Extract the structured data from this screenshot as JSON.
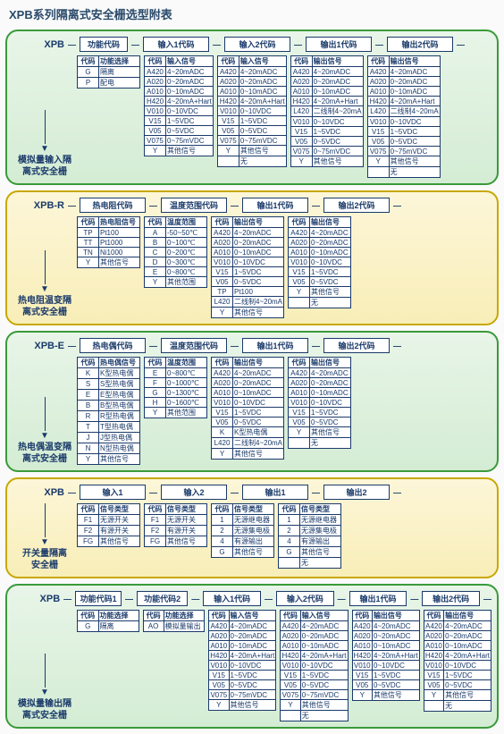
{
  "page_title": "XPB系列隔离式安全栅选型附表",
  "sections": [
    {
      "id": "s1",
      "theme": "green",
      "prefix": "XPB",
      "side_label": [
        "模拟量输入隔",
        "离式安全栅"
      ],
      "headers": [
        "功能代码",
        "输入1代码",
        "输入2代码",
        "输出1代码",
        "输出2代码"
      ],
      "header_widths": [
        54,
        74,
        74,
        74,
        74
      ],
      "tables": [
        {
          "cols": [
            "代码",
            "功能选择"
          ],
          "rows": [
            [
              "G",
              "隔离"
            ],
            [
              "P",
              "配电"
            ]
          ]
        },
        {
          "cols": [
            "代码",
            "输入信号"
          ],
          "rows": [
            [
              "A420",
              "4~20mADC"
            ],
            [
              "A020",
              "0~20mADC"
            ],
            [
              "A010",
              "0~10mADC"
            ],
            [
              "H420",
              "4~20mA+Hart"
            ],
            [
              "V010",
              "0~10VDC"
            ],
            [
              "V15",
              "1~5VDC"
            ],
            [
              "V05",
              "0~5VDC"
            ],
            [
              "V075",
              "0~75mVDC"
            ],
            [
              "Y",
              "其他信号"
            ]
          ]
        },
        {
          "cols": [
            "代码",
            "输入信号"
          ],
          "rows": [
            [
              "A420",
              "4~20mADC"
            ],
            [
              "A020",
              "0~20mADC"
            ],
            [
              "A010",
              "0~10mADC"
            ],
            [
              "H420",
              "4~20mA+Hart"
            ],
            [
              "V010",
              "0~10VDC"
            ],
            [
              "V15",
              "1~5VDC"
            ],
            [
              "V05",
              "0~5VDC"
            ],
            [
              "V075",
              "0~75mVDC"
            ],
            [
              "Y",
              "其他信号"
            ],
            [
              "",
              "无"
            ]
          ]
        },
        {
          "cols": [
            "代码",
            "输出信号"
          ],
          "rows": [
            [
              "A420",
              "4~20mADC"
            ],
            [
              "A020",
              "0~20mADC"
            ],
            [
              "A010",
              "0~10mADC"
            ],
            [
              "H420",
              "4~20mA+Hart"
            ],
            [
              "L420",
              "二线制4~20mA"
            ],
            [
              "V010",
              "0~10VDC"
            ],
            [
              "V15",
              "1~5VDC"
            ],
            [
              "V05",
              "0~5VDC"
            ],
            [
              "V075",
              "0~75mVDC"
            ],
            [
              "Y",
              "其他信号"
            ]
          ]
        },
        {
          "cols": [
            "代码",
            "输出信号"
          ],
          "rows": [
            [
              "A420",
              "4~20mADC"
            ],
            [
              "A020",
              "0~20mADC"
            ],
            [
              "A010",
              "0~10mADC"
            ],
            [
              "H420",
              "4~20mA+Hart"
            ],
            [
              "L420",
              "二线制4~20mA"
            ],
            [
              "V010",
              "0~10VDC"
            ],
            [
              "V15",
              "1~5VDC"
            ],
            [
              "V05",
              "0~5VDC"
            ],
            [
              "V075",
              "0~75mVDC"
            ],
            [
              "Y",
              "其他信号"
            ],
            [
              "",
              "无"
            ]
          ]
        }
      ]
    },
    {
      "id": "s2",
      "theme": "yellow",
      "prefix": "XPB-R",
      "side_label": [
        "热电阻温变隔",
        "离式安全栅"
      ],
      "headers": [
        "热电阻代码",
        "温度范围代码",
        "输出1代码",
        "输出2代码"
      ],
      "header_widths": [
        74,
        74,
        74,
        74
      ],
      "tables": [
        {
          "cols": [
            "代码",
            "热电阻信号"
          ],
          "rows": [
            [
              "TP",
              "Pt100"
            ],
            [
              "TT",
              "Pt1000"
            ],
            [
              "TN",
              "Ni1000"
            ],
            [
              "Y",
              "其他信号"
            ]
          ]
        },
        {
          "cols": [
            "代码",
            "温度范围"
          ],
          "rows": [
            [
              "A",
              "-50~50℃"
            ],
            [
              "B",
              "0~100℃"
            ],
            [
              "C",
              "0~200℃"
            ],
            [
              "D",
              "0~300℃"
            ],
            [
              "E",
              "0~800℃"
            ],
            [
              "Y",
              "其他范围"
            ]
          ]
        },
        {
          "cols": [
            "代码",
            "输出信号"
          ],
          "rows": [
            [
              "A420",
              "4~20mADC"
            ],
            [
              "A020",
              "0~20mADC"
            ],
            [
              "A010",
              "0~10mADC"
            ],
            [
              "V010",
              "0~10VDC"
            ],
            [
              "V15",
              "1~5VDC"
            ],
            [
              "V05",
              "0~5VDC"
            ],
            [
              "TP",
              "Pt100"
            ],
            [
              "L420",
              "二线制4~20mA"
            ],
            [
              "Y",
              "其他信号"
            ]
          ]
        },
        {
          "cols": [
            "代码",
            "输出信号"
          ],
          "rows": [
            [
              "A420",
              "4~20mADC"
            ],
            [
              "A020",
              "0~20mADC"
            ],
            [
              "A010",
              "0~10mADC"
            ],
            [
              "V010",
              "0~10VDC"
            ],
            [
              "V15",
              "1~5VDC"
            ],
            [
              "V05",
              "0~5VDC"
            ],
            [
              "Y",
              "其他信号"
            ],
            [
              "",
              "无"
            ]
          ]
        }
      ]
    },
    {
      "id": "s3",
      "theme": "green",
      "prefix": "XPB-E",
      "side_label": [
        "热电偶温变隔",
        "离式安全栅"
      ],
      "headers": [
        "热电偶代码",
        "温度范围代码",
        "输出1代码",
        "输出2代码"
      ],
      "header_widths": [
        74,
        74,
        74,
        74
      ],
      "tables": [
        {
          "cols": [
            "代码",
            "热电偶信号"
          ],
          "rows": [
            [
              "K",
              "K型热电偶"
            ],
            [
              "S",
              "S型热电偶"
            ],
            [
              "E",
              "E型热电偶"
            ],
            [
              "B",
              "B型热电偶"
            ],
            [
              "R",
              "R型热电偶"
            ],
            [
              "T",
              "T型热电偶"
            ],
            [
              "J",
              "J型热电偶"
            ],
            [
              "N",
              "N型热电偶"
            ],
            [
              "Y",
              "其他信号"
            ]
          ]
        },
        {
          "cols": [
            "代码",
            "温度范围"
          ],
          "rows": [
            [
              "E",
              "0~800℃"
            ],
            [
              "F",
              "0~1000℃"
            ],
            [
              "G",
              "0~1300℃"
            ],
            [
              "H",
              "0~1600℃"
            ],
            [
              "Y",
              "其他范围"
            ]
          ]
        },
        {
          "cols": [
            "代码",
            "输出信号"
          ],
          "rows": [
            [
              "A420",
              "4~20mADC"
            ],
            [
              "A020",
              "0~20mADC"
            ],
            [
              "A010",
              "0~10mADC"
            ],
            [
              "V010",
              "0~10VDC"
            ],
            [
              "V15",
              "1~5VDC"
            ],
            [
              "V05",
              "0~5VDC"
            ],
            [
              "K",
              "K型热电偶"
            ],
            [
              "L420",
              "二线制4~20mA"
            ],
            [
              "Y",
              "其他信号"
            ]
          ]
        },
        {
          "cols": [
            "代码",
            "输出信号"
          ],
          "rows": [
            [
              "A420",
              "4~20mADC"
            ],
            [
              "A020",
              "0~20mADC"
            ],
            [
              "A010",
              "0~10mADC"
            ],
            [
              "V010",
              "0~10VDC"
            ],
            [
              "V15",
              "1~5VDC"
            ],
            [
              "V05",
              "0~5VDC"
            ],
            [
              "Y",
              "其他信号"
            ],
            [
              "",
              "无"
            ]
          ]
        }
      ]
    },
    {
      "id": "s4",
      "theme": "yellow",
      "prefix": "XPB",
      "side_label": [
        "开关量隔离",
        "安全栅"
      ],
      "headers": [
        "输入1",
        "输入2",
        "输出1",
        "输出2"
      ],
      "header_widths": [
        74,
        74,
        74,
        74
      ],
      "tables": [
        {
          "cols": [
            "代码",
            "信号类型"
          ],
          "rows": [
            [
              "F1",
              "无源开关"
            ],
            [
              "F2",
              "有源开关"
            ],
            [
              "FG",
              "其他信号"
            ]
          ]
        },
        {
          "cols": [
            "代码",
            "信号类型"
          ],
          "rows": [
            [
              "F1",
              "无源开关"
            ],
            [
              "F2",
              "有源开关"
            ],
            [
              "FG",
              "其他信号"
            ]
          ]
        },
        {
          "cols": [
            "代码",
            "信号类型"
          ],
          "rows": [
            [
              "1",
              "无源继电器"
            ],
            [
              "2",
              "无源集电极"
            ],
            [
              "4",
              "有源输出"
            ],
            [
              "G",
              "其他信号"
            ]
          ]
        },
        {
          "cols": [
            "代码",
            "信号类型"
          ],
          "rows": [
            [
              "1",
              "无源继电器"
            ],
            [
              "2",
              "无源集电极"
            ],
            [
              "4",
              "有源输出"
            ],
            [
              "G",
              "其他信号"
            ],
            [
              "",
              "无"
            ]
          ]
        }
      ]
    },
    {
      "id": "s5",
      "theme": "green",
      "prefix": "XPB",
      "side_label": [
        "模拟量输出隔",
        "离式安全栅"
      ],
      "headers": [
        "功能代码1",
        "功能代码2",
        "输入1代码",
        "输入2代码",
        "输出1代码",
        "输出2代码"
      ],
      "header_widths": [
        56,
        62,
        70,
        70,
        70,
        70
      ],
      "tables": [
        {
          "cols": [
            "代码",
            "功能选择"
          ],
          "rows": [
            [
              "G",
              "隔离"
            ]
          ]
        },
        {
          "cols": [
            "代码",
            "功能选择"
          ],
          "rows": [
            [
              "AO",
              "模拟量输出"
            ]
          ]
        },
        {
          "cols": [
            "代码",
            "输入信号"
          ],
          "rows": [
            [
              "A420",
              "4~20mADC"
            ],
            [
              "A020",
              "0~20mADC"
            ],
            [
              "A010",
              "0~10mADC"
            ],
            [
              "H420",
              "4~20mA+Hart"
            ],
            [
              "V010",
              "0~10VDC"
            ],
            [
              "V15",
              "1~5VDC"
            ],
            [
              "V05",
              "0~5VDC"
            ],
            [
              "V075",
              "0~75mVDC"
            ],
            [
              "Y",
              "其他信号"
            ]
          ]
        },
        {
          "cols": [
            "代码",
            "输入信号"
          ],
          "rows": [
            [
              "A420",
              "4~20mADC"
            ],
            [
              "A020",
              "0~20mADC"
            ],
            [
              "A010",
              "0~10mADC"
            ],
            [
              "H420",
              "4~20mA+Hart"
            ],
            [
              "V010",
              "0~10VDC"
            ],
            [
              "V15",
              "1~5VDC"
            ],
            [
              "V05",
              "0~5VDC"
            ],
            [
              "V075",
              "0~75mVDC"
            ],
            [
              "Y",
              "其他信号"
            ],
            [
              "",
              "无"
            ]
          ]
        },
        {
          "cols": [
            "代码",
            "输出信号"
          ],
          "rows": [
            [
              "A420",
              "4~20mADC"
            ],
            [
              "A020",
              "0~20mADC"
            ],
            [
              "A010",
              "0~10mADC"
            ],
            [
              "H420",
              "4~20mA+Hart"
            ],
            [
              "V010",
              "0~10VDC"
            ],
            [
              "V15",
              "1~5VDC"
            ],
            [
              "V05",
              "0~5VDC"
            ],
            [
              "Y",
              "其他信号"
            ]
          ]
        },
        {
          "cols": [
            "代码",
            "输出信号"
          ],
          "rows": [
            [
              "A420",
              "4~20mADC"
            ],
            [
              "A020",
              "0~20mADC"
            ],
            [
              "A010",
              "0~10mADC"
            ],
            [
              "H420",
              "4~20mA+Hart"
            ],
            [
              "V010",
              "0~10VDC"
            ],
            [
              "V15",
              "1~5VDC"
            ],
            [
              "V05",
              "0~5VDC"
            ],
            [
              "Y",
              "其他信号"
            ],
            [
              "",
              "无"
            ]
          ]
        }
      ]
    }
  ]
}
